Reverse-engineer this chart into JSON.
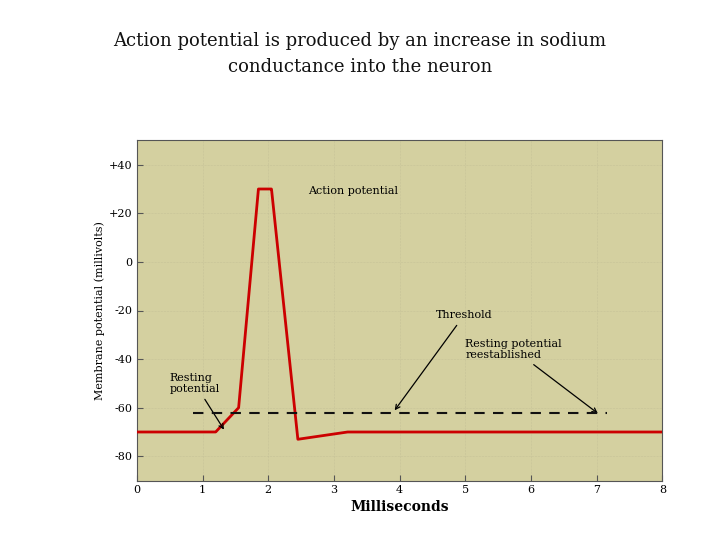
{
  "title_line1": "Action potential is produced by an increase in sodium",
  "title_line2": "conductance into the neuron",
  "xlabel": "Milliseconds",
  "ylabel": "Membrane potential (millivolts)",
  "plot_bg_color": "#d4d0a0",
  "outer_bg_color": "#ffffff",
  "line_color": "#cc0000",
  "dashed_line_color": "#111111",
  "resting_potential": -70,
  "threshold_level": -60,
  "peak": 30,
  "hyperpolarization": -73,
  "ylim": [
    -90,
    50
  ],
  "xlim": [
    0,
    8
  ],
  "yticks": [
    -80,
    -60,
    -40,
    -20,
    0,
    20,
    40
  ],
  "ytick_labels": [
    "-80",
    "-60",
    "-40",
    "-20",
    "0",
    "+20",
    "+40"
  ],
  "xticks": [
    0,
    1,
    2,
    3,
    4,
    5,
    6,
    7,
    8
  ],
  "title_fontsize": 13,
  "label_fontsize": 8,
  "tick_fontsize": 8
}
